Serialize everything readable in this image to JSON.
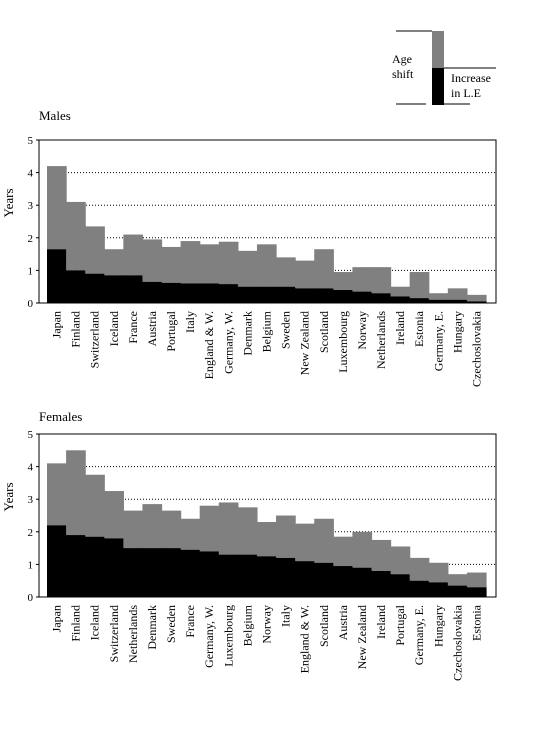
{
  "colors": {
    "shift": "#808080",
    "increase": "#000000",
    "grid": "#000000",
    "frame": "#000000"
  },
  "legend": {
    "shift_label_1": "Age",
    "shift_label_2": "shift",
    "increase_label_1": "Increase",
    "increase_label_2": "in L.E"
  },
  "chart_data": [
    {
      "type": "bar",
      "stacked": true,
      "title": "Males",
      "ylabel": "Years",
      "ylim": [
        0,
        5
      ],
      "yticks": [
        0,
        1,
        2,
        3,
        4,
        5
      ],
      "grid": "horizontal dotted at 1, 2, 3, 4",
      "categories": [
        "Japan",
        "Finland",
        "Switzerland",
        "Iceland",
        "France",
        "Austria",
        "Portugal",
        "Italy",
        "England & W.",
        "Germany, W.",
        "Denmark",
        "Belgium",
        "Sweden",
        "New Zealand",
        "Scotland",
        "Luxembourg",
        "Norway",
        "Netherlands",
        "Ireland",
        "Estonia",
        "Germany, E.",
        "Hungary",
        "Czechoslovakia"
      ],
      "series": [
        {
          "name": "Increase in L.E",
          "values": [
            1.65,
            1.0,
            0.9,
            0.85,
            0.85,
            0.65,
            0.62,
            0.6,
            0.6,
            0.58,
            0.5,
            0.5,
            0.5,
            0.45,
            0.45,
            0.4,
            0.35,
            0.3,
            0.2,
            0.15,
            0.1,
            0.1,
            0.05
          ]
        },
        {
          "name": "Age shift",
          "values": [
            2.55,
            2.1,
            1.45,
            0.8,
            1.25,
            1.3,
            1.1,
            1.3,
            1.2,
            1.3,
            1.1,
            1.3,
            0.9,
            0.85,
            1.2,
            0.55,
            0.75,
            0.8,
            0.3,
            0.8,
            0.2,
            0.35,
            0.2
          ]
        }
      ]
    },
    {
      "type": "bar",
      "stacked": true,
      "title": "Females",
      "ylabel": "Years",
      "ylim": [
        0,
        5
      ],
      "yticks": [
        0,
        1,
        2,
        3,
        4,
        5
      ],
      "grid": "horizontal dotted at 1, 2, 3, 4",
      "categories": [
        "Japan",
        "Finland",
        "Iceland",
        "Switzerland",
        "Netherlands",
        "Denmark",
        "Sweden",
        "France",
        "Germany, W.",
        "Luxembourg",
        "Belgium",
        "Norway",
        "Italy",
        "England & W.",
        "Scotland",
        "Austria",
        "New Zealand",
        "Ireland",
        "Portugal",
        "Germany, E.",
        "Hungary",
        "Czechoslovakia",
        "Estonia"
      ],
      "series": [
        {
          "name": "Increase in L.E",
          "values": [
            2.2,
            1.9,
            1.85,
            1.8,
            1.5,
            1.5,
            1.5,
            1.45,
            1.4,
            1.3,
            1.3,
            1.25,
            1.2,
            1.1,
            1.05,
            0.95,
            0.9,
            0.8,
            0.7,
            0.5,
            0.45,
            0.35,
            0.3
          ]
        },
        {
          "name": "Age shift",
          "values": [
            1.9,
            2.6,
            1.9,
            1.45,
            1.15,
            1.35,
            1.15,
            0.95,
            1.4,
            1.6,
            1.45,
            1.05,
            1.3,
            1.15,
            1.35,
            0.9,
            1.1,
            0.95,
            0.85,
            0.7,
            0.6,
            0.35,
            0.45
          ]
        }
      ]
    }
  ]
}
